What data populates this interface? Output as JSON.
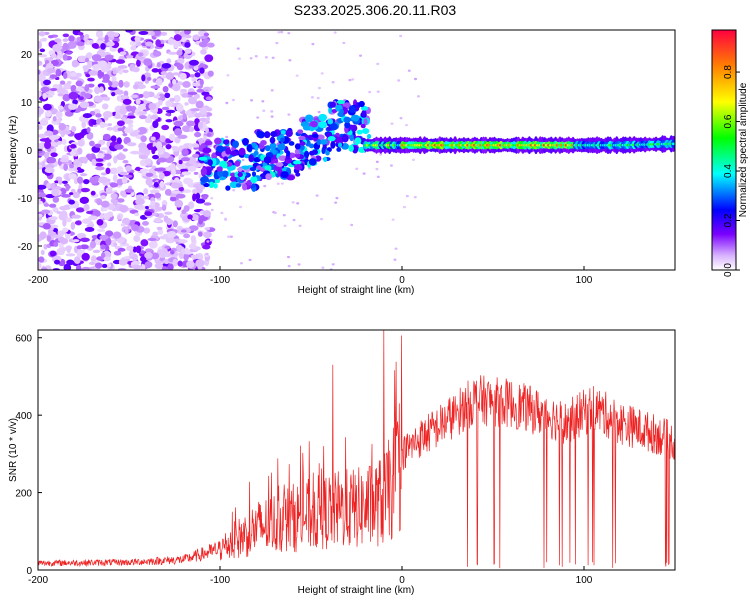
{
  "title": "S233.2025.306.20.11.R03",
  "chart_data": [
    {
      "type": "heatmap",
      "name": "spectrogram",
      "xlabel": "Height of straight line (km)",
      "ylabel": "Frequency (Hz)",
      "xlim": [
        -200,
        150
      ],
      "ylim": [
        -25,
        25
      ],
      "xticks": [
        -200,
        -100,
        0,
        100
      ],
      "yticks": [
        -20,
        -10,
        0,
        10,
        20
      ],
      "colorbar": {
        "label": "Normalized spectral amplitude",
        "range": [
          0,
          0.97
        ],
        "ticks": [
          0.0,
          0.2,
          0.4,
          0.6,
          0.8
        ],
        "tick_labels": [
          "0.0",
          "0.2",
          "0.4",
          "0.6",
          "0.8"
        ]
      },
      "features": [
        {
          "desc": "scattered noise blobs",
          "x_range": [
            -200,
            -110
          ],
          "freq_range": [
            -25,
            25
          ]
        },
        {
          "desc": "onset cluster",
          "x_range": [
            -110,
            -20
          ],
          "freq_center": 0,
          "spread": 6
        },
        {
          "desc": "narrow ridge",
          "x_range": [
            -20,
            150
          ],
          "freq_center": 1,
          "peak_amplitude": 0.9
        }
      ],
      "colors": {
        "low": "#e8c8ff",
        "mid": "#7a00ff",
        "high": "#ff0040"
      }
    },
    {
      "type": "line",
      "name": "snr",
      "xlabel": "Height of straight line (km)",
      "ylabel": "SNR (10 * v/v)",
      "xlim": [
        -200,
        150
      ],
      "ylim": [
        0,
        620
      ],
      "xticks": [
        -200,
        -100,
        0,
        100
      ],
      "yticks": [
        0,
        200,
        400,
        600
      ],
      "line_color": "#ee2222",
      "envelope": [
        {
          "x": -200,
          "y": 20
        },
        {
          "x": -150,
          "y": 22
        },
        {
          "x": -120,
          "y": 30
        },
        {
          "x": -100,
          "y": 60
        },
        {
          "x": -90,
          "y": 90
        },
        {
          "x": -80,
          "y": 120
        },
        {
          "x": -60,
          "y": 150
        },
        {
          "x": -40,
          "y": 170
        },
        {
          "x": -20,
          "y": 180
        },
        {
          "x": -10,
          "y": 200
        },
        {
          "x": 0,
          "y": 300
        },
        {
          "x": 10,
          "y": 340
        },
        {
          "x": 20,
          "y": 370
        },
        {
          "x": 40,
          "y": 440
        },
        {
          "x": 60,
          "y": 430
        },
        {
          "x": 80,
          "y": 400
        },
        {
          "x": 90,
          "y": 380
        },
        {
          "x": 105,
          "y": 420
        },
        {
          "x": 120,
          "y": 380
        },
        {
          "x": 140,
          "y": 350
        },
        {
          "x": 150,
          "y": 330
        }
      ],
      "spikes": [
        {
          "x": -38,
          "y": 530
        },
        {
          "x": -10,
          "y": 620
        },
        {
          "x": -43,
          "y": 320
        }
      ]
    }
  ]
}
